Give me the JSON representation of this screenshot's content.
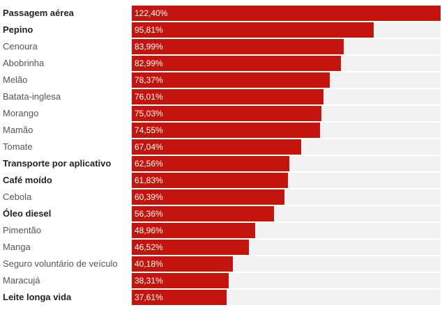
{
  "chart_data": {
    "type": "bar",
    "orientation": "horizontal",
    "categories": [
      "Passagem aérea",
      "Pepino",
      "Cenoura",
      "Abobrinha",
      "Melão",
      "Batata-inglesa",
      "Morango",
      "Mamão",
      "Tomate",
      "Transporte por aplicativo",
      "Café moído",
      "Cebola",
      "Óleo diesel",
      "Pimentão",
      "Manga",
      "Seguro voluntário de veículo",
      "Maracujá",
      "Leite longa vida"
    ],
    "values": [
      122.4,
      95.81,
      83.99,
      82.99,
      78.37,
      76.01,
      75.03,
      74.55,
      67.04,
      62.56,
      61.83,
      60.39,
      56.36,
      48.96,
      46.52,
      40.18,
      38.31,
      37.61
    ],
    "value_labels": [
      "122,40%",
      "95,81%",
      "83,99%",
      "82,99%",
      "78,37%",
      "76,01%",
      "75,03%",
      "74,55%",
      "67,04%",
      "62,56%",
      "61,83%",
      "60,39%",
      "56,36%",
      "48,96%",
      "46,52%",
      "40,18%",
      "38,31%",
      "37,61%"
    ],
    "bold_categories": [
      "Passagem aérea",
      "Pepino",
      "Transporte por aplicativo",
      "Café moído",
      "Óleo diesel",
      "Leite longa vida"
    ],
    "xlim": [
      0,
      122.4
    ],
    "bar_color": "#c4140f",
    "track_color": "#f2f2f2",
    "grid": false,
    "title": "",
    "xlabel": "",
    "ylabel": ""
  }
}
